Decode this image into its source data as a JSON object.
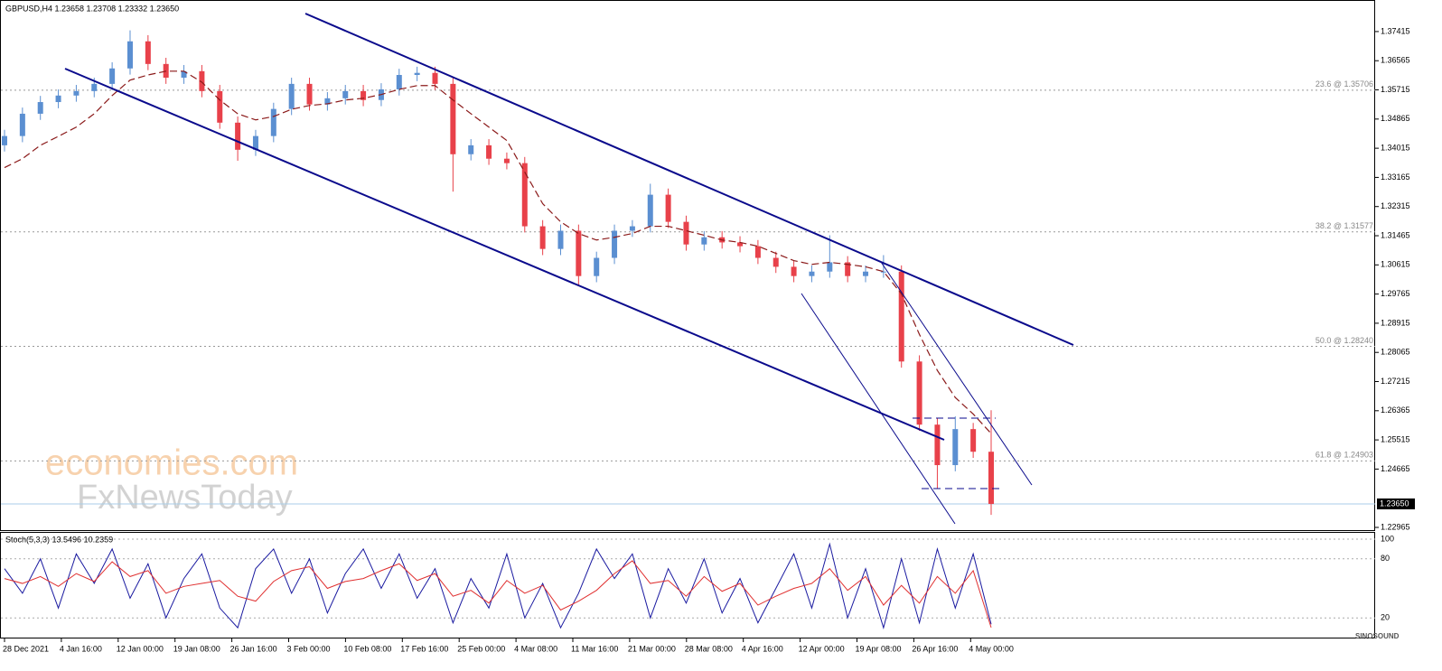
{
  "chart_data": [
    {
      "type": "candlestick",
      "title": "GBPUSD,H4  1.23658 1.23708 1.23332 1.23650",
      "up_color": "#5b8fd1",
      "down_color": "#e8414a",
      "open": [
        1.341,
        1.3437,
        1.3502,
        1.3536,
        1.3555,
        1.3568,
        1.3589,
        1.3634,
        1.3713,
        1.3647,
        1.3607,
        1.3626,
        1.3568,
        1.3476,
        1.3397,
        1.3437,
        1.3516,
        1.3589,
        1.3529,
        1.3547,
        1.3568,
        1.3542,
        1.3573,
        1.3615,
        1.3621,
        1.3589,
        1.3384,
        1.341,
        1.3371,
        1.3358,
        1.3174,
        1.3108,
        1.3161,
        1.3029,
        1.3082,
        1.3161,
        1.3174,
        1.3266,
        1.3187,
        1.3121,
        1.3142,
        1.3127,
        1.3116,
        1.3082,
        1.3056,
        1.3029,
        1.3042,
        1.3069,
        1.3029,
        1.3042,
        1.3042,
        1.278,
        1.2596,
        1.2478,
        1.2583,
        1.2517
      ],
      "high": [
        1.3455,
        1.352,
        1.3554,
        1.3573,
        1.3586,
        1.3607,
        1.3652,
        1.3745,
        1.3731,
        1.3665,
        1.3644,
        1.3644,
        1.3586,
        1.3494,
        1.3455,
        1.3534,
        1.3607,
        1.3607,
        1.3565,
        1.3586,
        1.3586,
        1.3591,
        1.3633,
        1.3639,
        1.3639,
        1.3607,
        1.3428,
        1.3428,
        1.3389,
        1.3376,
        1.3192,
        1.3179,
        1.3179,
        1.31,
        1.3179,
        1.3192,
        1.3298,
        1.3284,
        1.3205,
        1.316,
        1.316,
        1.3145,
        1.3134,
        1.31,
        1.3074,
        1.306,
        1.3148,
        1.3087,
        1.306,
        1.309,
        1.306,
        1.2798,
        1.2614,
        1.262,
        1.2601,
        1.2638
      ],
      "low": [
        1.3392,
        1.3419,
        1.3484,
        1.3518,
        1.3537,
        1.355,
        1.3571,
        1.3616,
        1.3629,
        1.3589,
        1.3589,
        1.355,
        1.3458,
        1.3365,
        1.3379,
        1.3419,
        1.3498,
        1.3511,
        1.3511,
        1.3529,
        1.3524,
        1.3524,
        1.3555,
        1.3597,
        1.3571,
        1.3275,
        1.3366,
        1.3353,
        1.334,
        1.3156,
        1.309,
        1.309,
        1.3,
        1.3011,
        1.3064,
        1.3143,
        1.3156,
        1.3169,
        1.3103,
        1.3103,
        1.3109,
        1.3098,
        1.3064,
        1.3038,
        1.3011,
        1.3011,
        1.3024,
        1.3011,
        1.3011,
        1.3024,
        1.2762,
        1.2578,
        1.241,
        1.246,
        1.2499,
        1.2333
      ],
      "close": [
        1.3437,
        1.3502,
        1.3536,
        1.3555,
        1.3568,
        1.3589,
        1.3634,
        1.3713,
        1.3647,
        1.3607,
        1.3626,
        1.3568,
        1.3476,
        1.3397,
        1.3437,
        1.3516,
        1.3589,
        1.3529,
        1.3547,
        1.3568,
        1.3542,
        1.3573,
        1.3615,
        1.3621,
        1.3589,
        1.3384,
        1.341,
        1.3371,
        1.3358,
        1.3174,
        1.3108,
        1.3161,
        1.3029,
        1.3082,
        1.3161,
        1.3174,
        1.3266,
        1.3187,
        1.3121,
        1.3142,
        1.3127,
        1.3116,
        1.3082,
        1.3056,
        1.3029,
        1.3042,
        1.3069,
        1.3029,
        1.3042,
        1.3042,
        1.278,
        1.2596,
        1.2478,
        1.2583,
        1.2517,
        1.2365
      ],
      "ma": {
        "color": "#8b1a1a",
        "values": [
          1.3345,
          1.3371,
          1.341,
          1.3436,
          1.3463,
          1.3502,
          1.3555,
          1.36,
          1.3615,
          1.3626,
          1.3626,
          1.3594,
          1.3542,
          1.3502,
          1.3484,
          1.3494,
          1.3515,
          1.3526,
          1.3531,
          1.3542,
          1.3547,
          1.3558,
          1.3573,
          1.3584,
          1.3584,
          1.3542,
          1.3502,
          1.3463,
          1.3424,
          1.3332,
          1.324,
          1.3187,
          1.3153,
          1.3134,
          1.3142,
          1.3153,
          1.3174,
          1.3174,
          1.3161,
          1.3148,
          1.3134,
          1.3127,
          1.3116,
          1.3095,
          1.3074,
          1.3063,
          1.3069,
          1.3063,
          1.3056,
          1.3042,
          1.2977,
          1.2859,
          1.2754,
          1.2675,
          1.2627,
          1.257
        ]
      },
      "ylim": [
        1.22886,
        1.38308
      ],
      "yticks": [
        1.37415,
        1.36565,
        1.35715,
        1.34865,
        1.34015,
        1.33165,
        1.32315,
        1.31465,
        1.30615,
        1.29765,
        1.28915,
        1.28065,
        1.27215,
        1.26365,
        1.25515,
        1.24665,
        1.22965
      ],
      "fib_levels": [
        {
          "value": 1.35706,
          "label": "23.6 @ 1.35706"
        },
        {
          "value": 1.31577,
          "label": "38.2 @ 1.31577"
        },
        {
          "value": 1.2824,
          "label": "50.0 @ 1.28240"
        },
        {
          "value": 1.24903,
          "label": "61.8 @ 1.24903"
        }
      ],
      "last_price": {
        "value": 1.2365,
        "label": "1.23650"
      },
      "x_labels": [
        "28 Dec 2021",
        "4 Jan 16:00",
        "12 Jan 00:00",
        "19 Jan 08:00",
        "26 Jan 16:00",
        "3 Feb 00:00",
        "10 Feb 08:00",
        "17 Feb 16:00",
        "25 Feb 00:00",
        "4 Mar 08:00",
        "11 Mar 16:00",
        "21 Mar 00:00",
        "28 Mar 08:00",
        "4 Apr 16:00",
        "12 Apr 00:00",
        "19 Apr 08:00",
        "26 Apr 16:00",
        "4 May 00:00"
      ]
    },
    {
      "type": "line",
      "title": "Stoch(5,3,3) 13.5496 10.2359",
      "series": [
        {
          "color": "#1a1aa0",
          "values": [
            70,
            45,
            80,
            30,
            85,
            55,
            90,
            40,
            75,
            20,
            60,
            85,
            30,
            10,
            70,
            90,
            45,
            80,
            25,
            65,
            90,
            50,
            85,
            40,
            70,
            15,
            60,
            30,
            85,
            20,
            55,
            10,
            45,
            90,
            60,
            85,
            20,
            70,
            35,
            80,
            25,
            60,
            15,
            50,
            85,
            30,
            95,
            20,
            70,
            10,
            80,
            15,
            90,
            30,
            85,
            13.5
          ]
        },
        {
          "color": "#e03030",
          "values": [
            60,
            55,
            62,
            52,
            65,
            57,
            77,
            62,
            68,
            45,
            52,
            55,
            58,
            42,
            37,
            57,
            68,
            72,
            50,
            57,
            60,
            68,
            75,
            58,
            65,
            42,
            48,
            35,
            58,
            45,
            53,
            28,
            37,
            48,
            65,
            78,
            55,
            58,
            42,
            62,
            47,
            55,
            33,
            42,
            50,
            55,
            70,
            48,
            62,
            33,
            53,
            35,
            62,
            45,
            68,
            10.2
          ]
        }
      ],
      "ylim": [
        0,
        106.4
      ],
      "yticks": [
        100,
        80,
        20
      ]
    }
  ],
  "watermark": {
    "brand": "economies.com",
    "subbrand": "FxNewsToday",
    "logo": "SINOSOUND"
  }
}
